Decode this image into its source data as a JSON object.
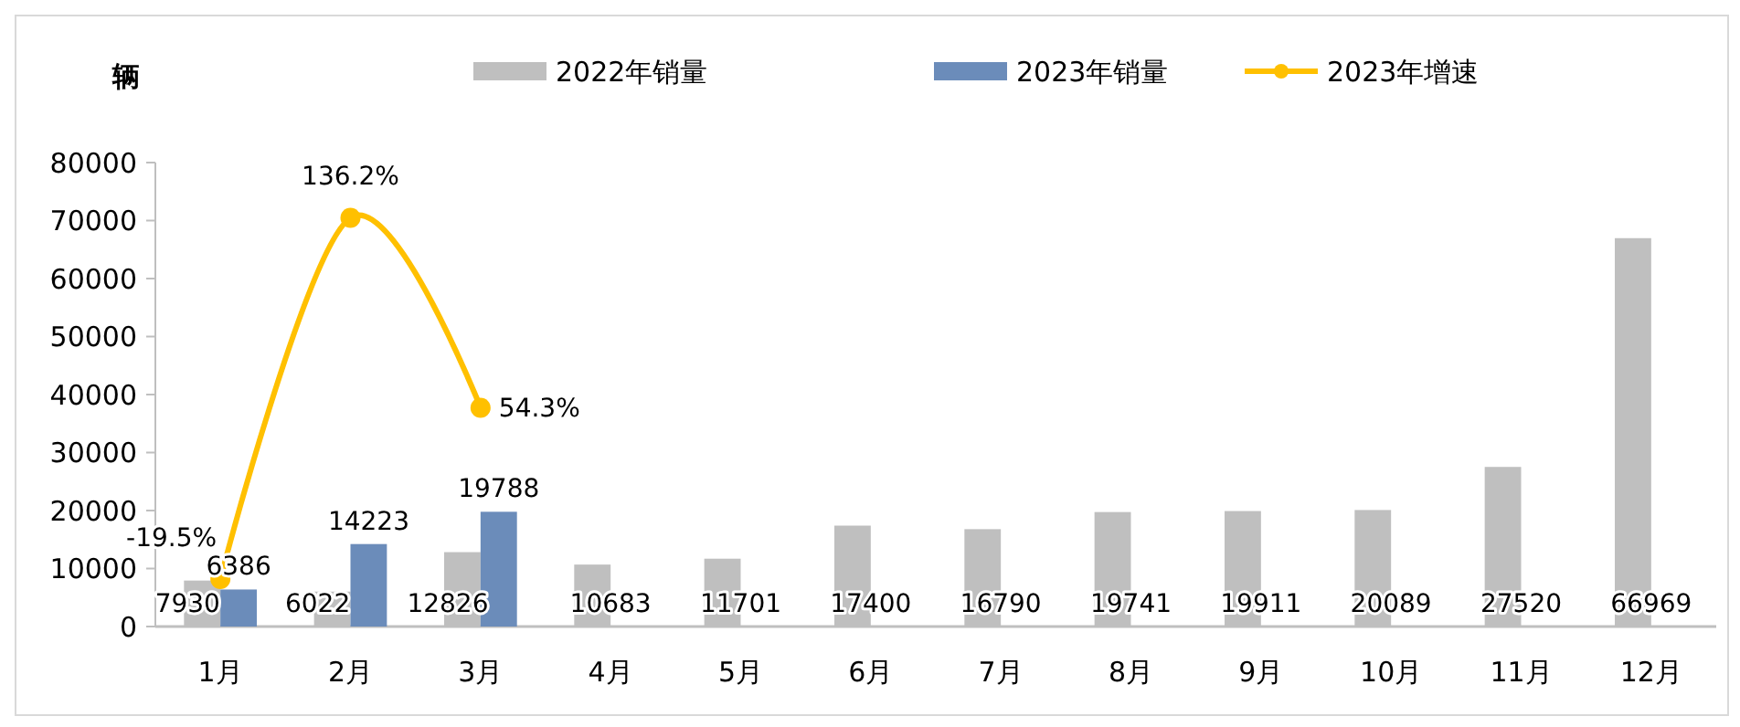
{
  "chart_data": {
    "type": "bar",
    "ylabel": "辆",
    "categories": [
      "1月",
      "2月",
      "3月",
      "4月",
      "5月",
      "6月",
      "7月",
      "8月",
      "9月",
      "10月",
      "11月",
      "12月"
    ],
    "series": [
      {
        "name": "2022年销量",
        "color": "#bfbfbf",
        "values": [
          7930,
          6022,
          12826,
          10683,
          11701,
          17400,
          16790,
          19741,
          19911,
          20089,
          27520,
          66969
        ]
      },
      {
        "name": "2023年销量",
        "color": "#6b8cba",
        "values": [
          6386,
          14223,
          19788,
          null,
          null,
          null,
          null,
          null,
          null,
          null,
          null,
          null
        ]
      },
      {
        "name": "2023年增速",
        "type": "line",
        "axis": "y2",
        "color": "#ffc000",
        "marker": "circle",
        "values": [
          -19.5,
          136.2,
          54.3,
          null,
          null,
          null,
          null,
          null,
          null,
          null,
          null,
          null
        ],
        "value_labels": [
          "-19.5%",
          "136.2%",
          "54.3%",
          null,
          null,
          null,
          null,
          null,
          null,
          null,
          null,
          null
        ]
      }
    ],
    "ylim": [
      0,
      80000
    ],
    "yticks": [
      0,
      10000,
      20000,
      30000,
      40000,
      50000,
      60000,
      70000,
      80000
    ],
    "y2lim": [
      -40,
      160
    ],
    "data_labels": true,
    "legend": "top",
    "grid": false
  }
}
